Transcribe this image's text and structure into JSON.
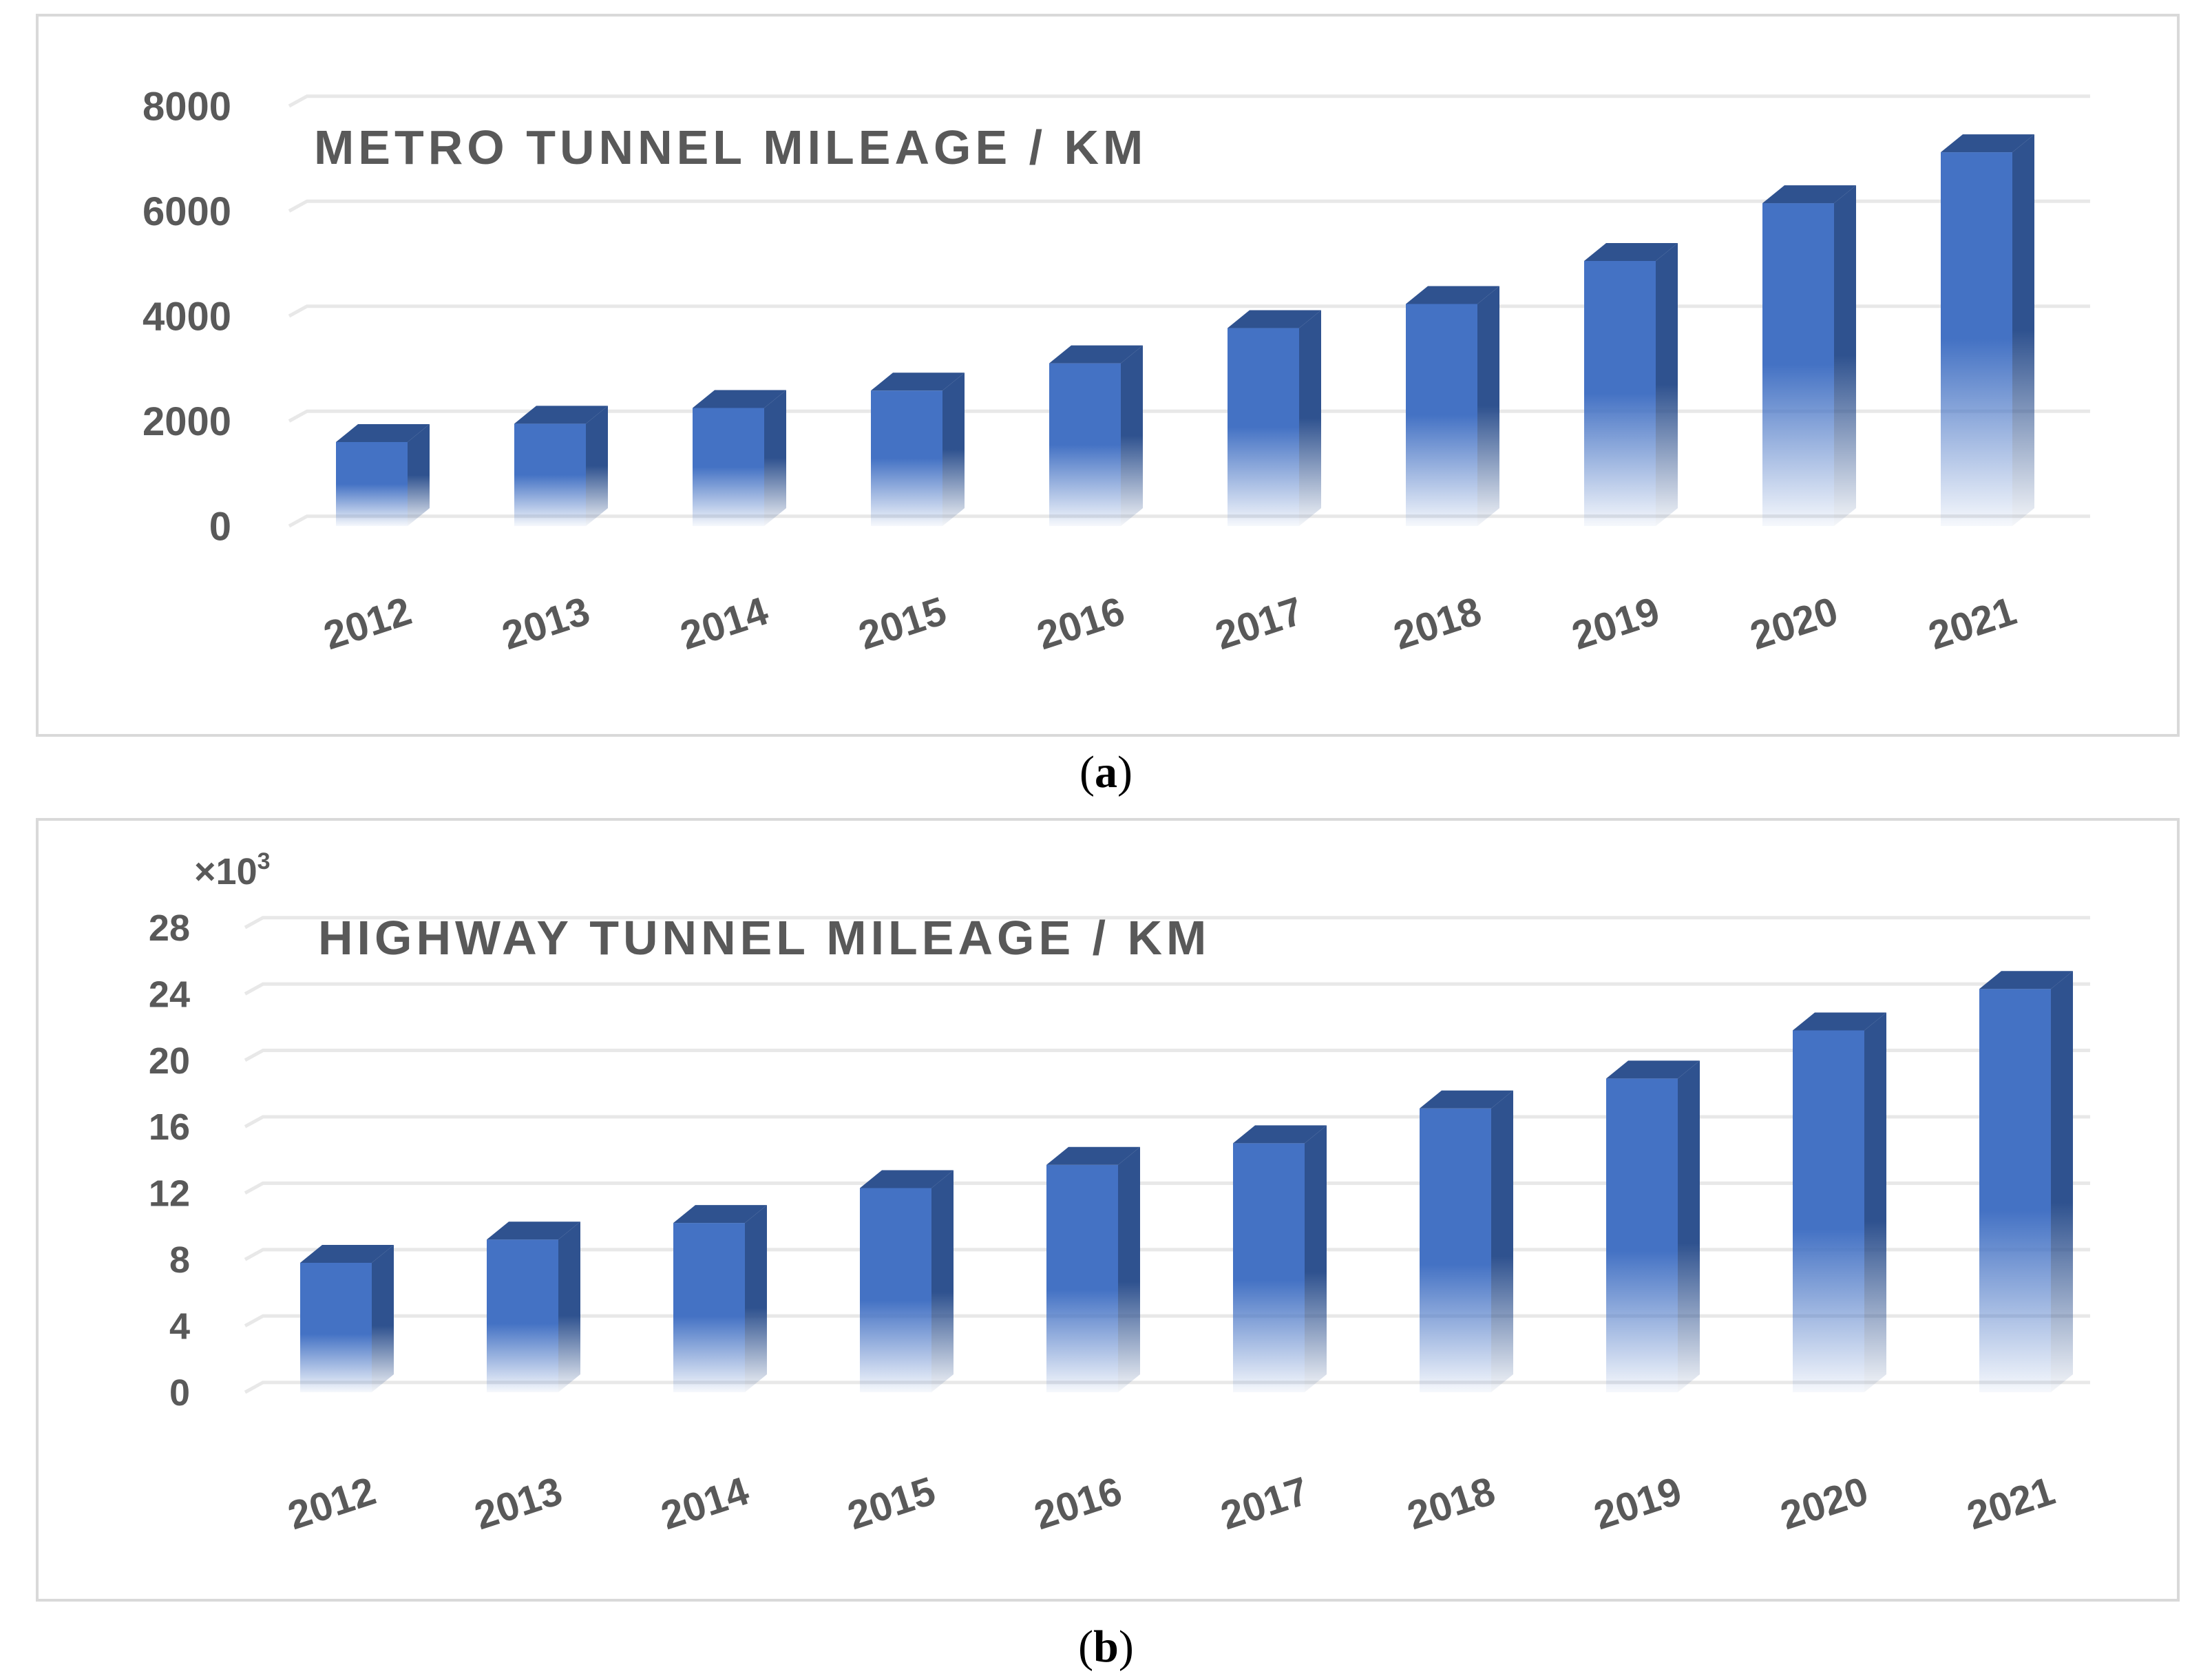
{
  "chart_data": [
    {
      "type": "bar",
      "panel": "a",
      "title": "METRO TUNNEL MILEAGE / KM",
      "caption_letter": "a",
      "categories": [
        "2012",
        "2013",
        "2014",
        "2015",
        "2016",
        "2017",
        "2018",
        "2019",
        "2020",
        "2021"
      ],
      "values": [
        1600,
        1950,
        2250,
        2580,
        3100,
        3770,
        4230,
        5050,
        6150,
        7120
      ],
      "yticks": [
        "0",
        "2000",
        "4000",
        "6000",
        "8000"
      ],
      "ylim": [
        0,
        8000
      ],
      "xlabel": "",
      "ylabel": "",
      "grid": true,
      "bar_color": "#4472c4",
      "bar_side_color": "#2f528f"
    },
    {
      "type": "bar",
      "panel": "b",
      "title": "HIGHWAY TUNNEL MILEAGE / KM",
      "caption_letter": "b",
      "unit_prefix": "×10",
      "unit_exponent": "3",
      "categories": [
        "2012",
        "2013",
        "2014",
        "2015",
        "2016",
        "2017",
        "2018",
        "2019",
        "2020",
        "2021"
      ],
      "values": [
        7.8,
        9.2,
        10.2,
        12.3,
        13.7,
        15.0,
        17.1,
        18.9,
        21.8,
        24.3
      ],
      "yticks": [
        "0",
        "4",
        "8",
        "12",
        "16",
        "20",
        "24",
        "28"
      ],
      "ylim": [
        0,
        28
      ],
      "xlabel": "",
      "ylabel": "",
      "grid": true,
      "bar_color": "#4472c4",
      "bar_side_color": "#2f528f"
    }
  ]
}
